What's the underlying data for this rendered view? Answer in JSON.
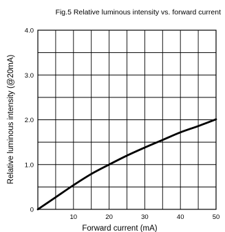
{
  "chart_data": {
    "type": "line",
    "title": "Fig.5 Relative luminous intensity vs. forward current",
    "xlabel": "Forward current (mA)",
    "ylabel": "Relative luminous intensity (@20mA)",
    "xlim": [
      0,
      50
    ],
    "ylim": [
      0,
      4.0
    ],
    "x_ticks": [
      10,
      20,
      30,
      40,
      50
    ],
    "x_tick_labels": [
      "10",
      "20",
      "30",
      "40",
      "50"
    ],
    "y_ticks": [
      0,
      1.0,
      2.0,
      3.0,
      4.0
    ],
    "y_tick_labels": [
      "0",
      "1.0",
      "2.0",
      "3.0",
      "4.0"
    ],
    "x_grid_step": 5,
    "y_grid_step": 0.5,
    "grid": true,
    "series": [
      {
        "x": [
          0,
          5,
          10,
          15,
          20,
          25,
          30,
          35,
          40,
          45,
          50
        ],
        "values": [
          0,
          0.27,
          0.54,
          0.79,
          1.0,
          1.2,
          1.38,
          1.55,
          1.72,
          1.86,
          2.01
        ]
      }
    ],
    "line_color": "#000000",
    "grid_color": "#000000"
  }
}
